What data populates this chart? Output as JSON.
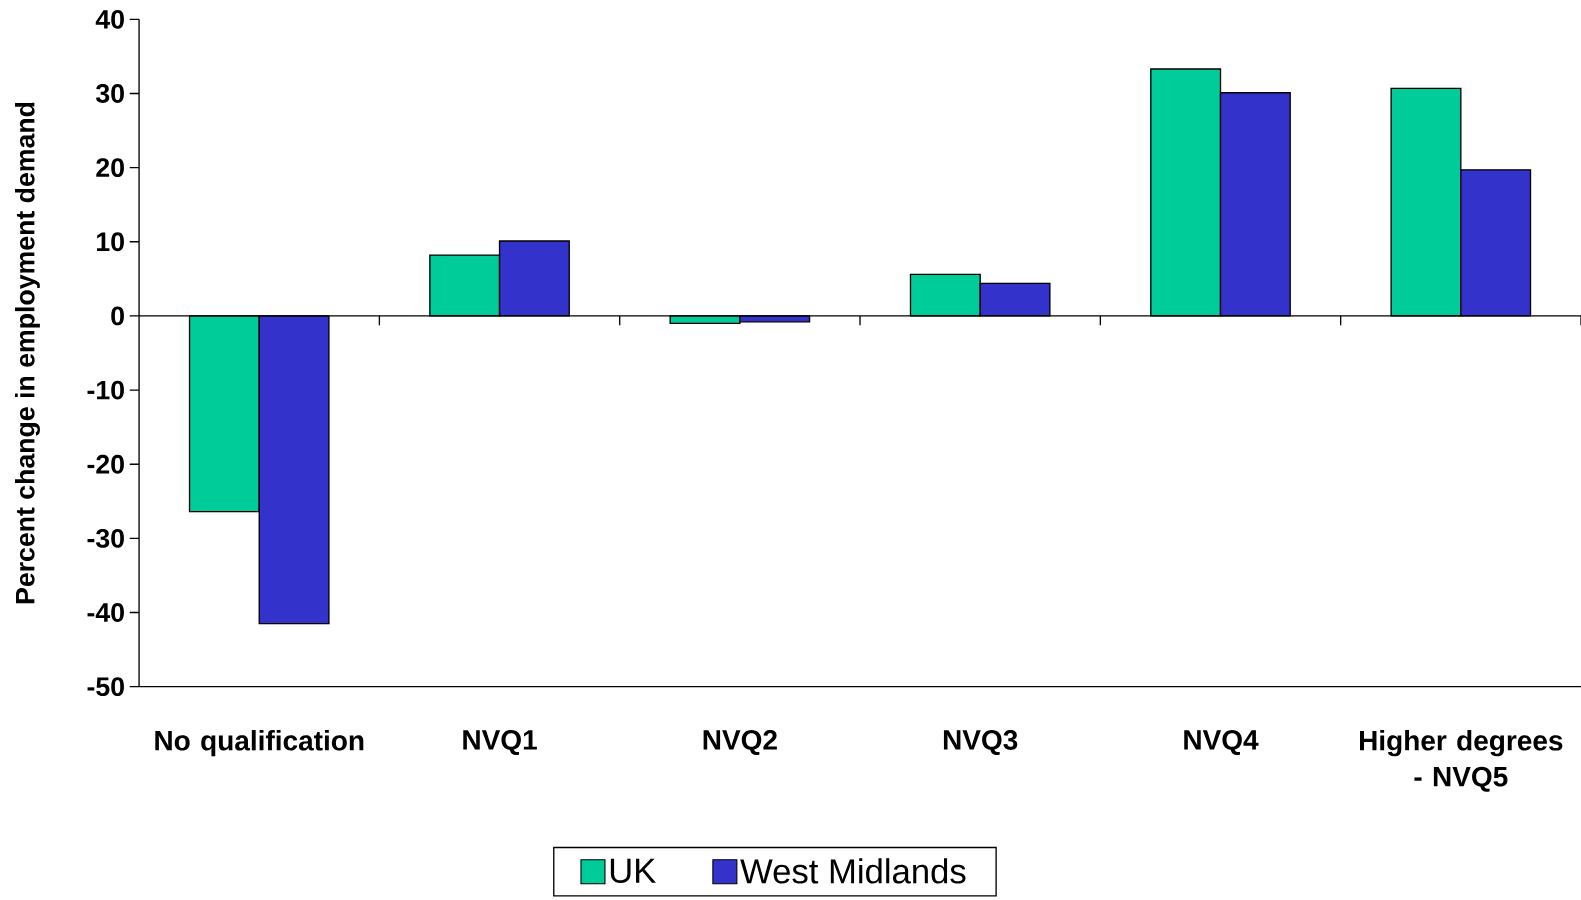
{
  "chart_data": {
    "type": "bar",
    "ylabel": "Percent change in employment demand",
    "categories": [
      "No qualification",
      "NVQ1",
      "NVQ2",
      "NVQ3",
      "NVQ4",
      "Higher degrees - NVQ5"
    ],
    "series": [
      {
        "name": "UK",
        "color": "#00cc99",
        "values": [
          -26.4,
          8.2,
          -1.0,
          5.6,
          33.3,
          30.7
        ]
      },
      {
        "name": "West Midlands",
        "color": "#3333cc",
        "values": [
          -41.5,
          10.1,
          -0.8,
          4.4,
          30.1,
          19.7
        ]
      }
    ],
    "ylim": [
      -50,
      40
    ],
    "yticks": [
      -50,
      -40,
      -30,
      -20,
      -10,
      0,
      10,
      20,
      30,
      40
    ],
    "legend": "bottom"
  }
}
